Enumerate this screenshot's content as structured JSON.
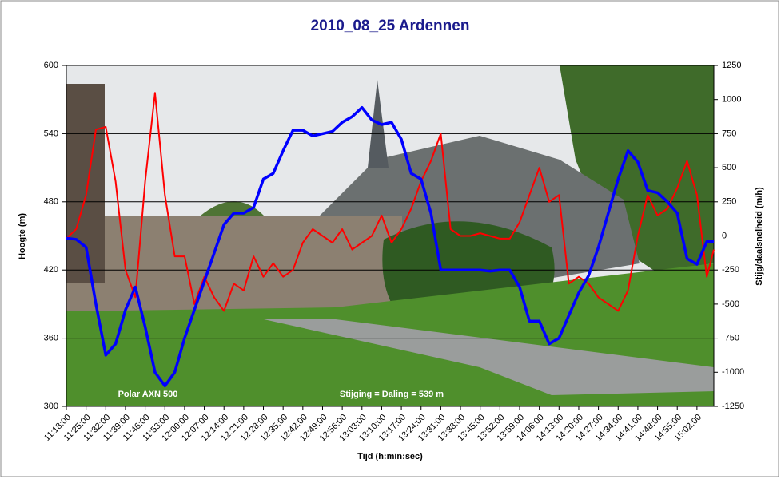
{
  "chart_data": {
    "type": "line",
    "title": "2010_08_25 Ardennen",
    "x_label": "Tijd (h:min:sec)",
    "y_label": "Hoogte (m)",
    "y2_label": "Stijg/daalsnelheid (m/h)",
    "annotations": [
      "Polar AXN 500",
      "Stijging = Daling = 539 m"
    ],
    "x": [
      "11:18:00",
      "11:21:30",
      "11:25:00",
      "11:28:30",
      "11:32:00",
      "11:35:30",
      "11:39:00",
      "11:42:30",
      "11:46:00",
      "11:49:30",
      "11:53:00",
      "11:56:30",
      "12:00:00",
      "12:03:30",
      "12:07:00",
      "12:10:30",
      "12:14:00",
      "12:17:30",
      "12:21:00",
      "12:24:30",
      "12:28:00",
      "12:31:30",
      "12:35:00",
      "12:38:30",
      "12:42:00",
      "12:45:30",
      "12:49:00",
      "12:52:30",
      "12:56:00",
      "12:59:30",
      "13:03:00",
      "13:06:30",
      "13:10:00",
      "13:13:30",
      "13:17:00",
      "13:20:30",
      "13:24:00",
      "13:27:30",
      "13:31:00",
      "13:34:30",
      "13:38:00",
      "13:41:30",
      "13:45:00",
      "13:48:30",
      "13:52:00",
      "13:55:30",
      "13:59:00",
      "14:02:30",
      "14:06:00",
      "14:09:30",
      "14:13:00",
      "14:16:30",
      "14:20:00",
      "14:23:30",
      "14:27:00",
      "14:30:30",
      "14:34:00",
      "14:37:30",
      "14:41:00",
      "14:44:30",
      "14:48:00",
      "14:51:30",
      "14:55:00",
      "14:58:30",
      "15:02:00",
      "15:05:30",
      "15:08:00"
    ],
    "xlim": [
      "11:18:00",
      "15:08:00"
    ],
    "xticks": [
      "11:18:00",
      "11:25:00",
      "11:32:00",
      "11:39:00",
      "11:46:00",
      "11:53:00",
      "12:00:00",
      "12:07:00",
      "12:14:00",
      "12:21:00",
      "12:28:00",
      "12:35:00",
      "12:42:00",
      "12:49:00",
      "12:56:00",
      "13:03:00",
      "13:10:00",
      "13:17:00",
      "13:24:00",
      "13:31:00",
      "13:38:00",
      "13:45:00",
      "13:52:00",
      "13:59:00",
      "14:06:00",
      "14:13:00",
      "14:20:00",
      "14:27:00",
      "14:34:00",
      "14:41:00",
      "14:48:00",
      "14:55:00",
      "15:02:00"
    ],
    "ylim": [
      300,
      600
    ],
    "yticks": [
      300,
      360,
      420,
      480,
      540,
      600
    ],
    "y2lim": [
      -1250,
      1250
    ],
    "y2ticks": [
      -1250,
      -1000,
      -750,
      -500,
      -250,
      0,
      250,
      500,
      750,
      1000,
      1250
    ],
    "grid": true,
    "series": [
      {
        "color": "#0000ff",
        "values": [
          448,
          447,
          440,
          390,
          345,
          355,
          385,
          405,
          370,
          330,
          318,
          330,
          360,
          385,
          410,
          435,
          460,
          470,
          470,
          475,
          500,
          505,
          525,
          543,
          543,
          538,
          540,
          542,
          550,
          555,
          563,
          552,
          548,
          550,
          535,
          505,
          500,
          470,
          420,
          420,
          420,
          420,
          420,
          419,
          420,
          420,
          405,
          375,
          375,
          355,
          360,
          380,
          400,
          415,
          440,
          470,
          500,
          525,
          515,
          490,
          488,
          480,
          470,
          430,
          425,
          445,
          445
        ]
      },
      {
        "color": "#ff0000",
        "axis": "y2",
        "values": [
          -20,
          50,
          300,
          780,
          800,
          400,
          -250,
          -450,
          400,
          1050,
          300,
          -150,
          -150,
          -500,
          -300,
          -450,
          -550,
          -350,
          -400,
          -150,
          -300,
          -200,
          -300,
          -250,
          -50,
          50,
          0,
          -50,
          50,
          -100,
          -50,
          0,
          150,
          -50,
          50,
          200,
          400,
          550,
          750,
          50,
          0,
          0,
          20,
          0,
          -20,
          -20,
          100,
          300,
          500,
          250,
          300,
          -350,
          -300,
          -350,
          -450,
          -500,
          -550,
          -400,
          0,
          300,
          150,
          200,
          350,
          550,
          300,
          -300,
          -100
        ]
      }
    ]
  }
}
